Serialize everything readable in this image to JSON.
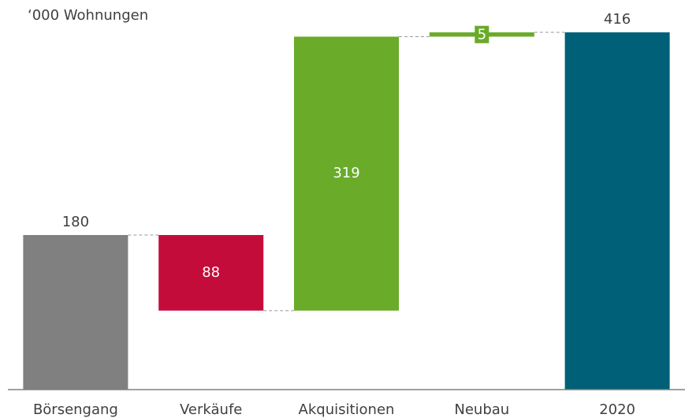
{
  "chart_data": {
    "type": "waterfall",
    "title": "‘000 Wohnungen",
    "categories": [
      "Börsengang",
      "Verkäufe",
      "Akquisitionen",
      "Neubau",
      "2020"
    ],
    "values": [
      180,
      -88,
      319,
      5,
      416
    ],
    "value_labels": [
      "180",
      "88",
      "319",
      "5",
      "416"
    ],
    "measure": [
      "absolute",
      "relative",
      "relative",
      "relative",
      "total"
    ],
    "colors": [
      "#808080",
      "#c40c3b",
      "#6aab29",
      "#6aab29",
      "#006078"
    ],
    "ylim": [
      0,
      450
    ]
  }
}
